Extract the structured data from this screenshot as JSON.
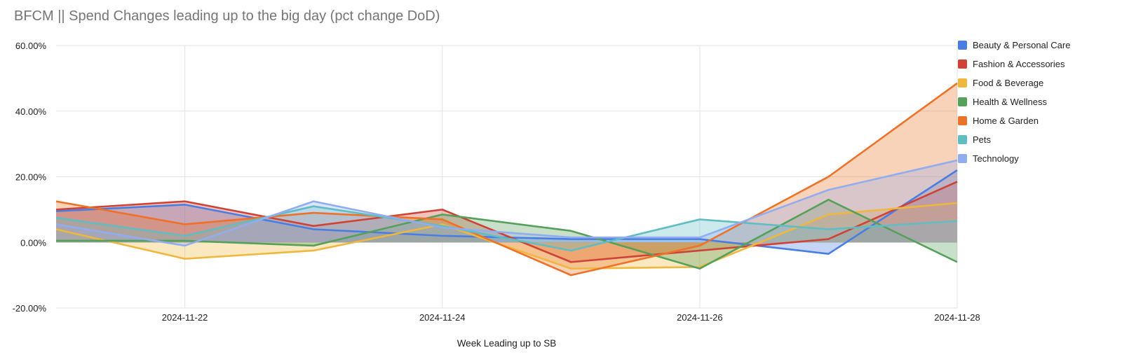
{
  "title": "BFCM || Spend Changes leading up to the big day (pct change DoD)",
  "chart_data": {
    "type": "area",
    "title": "BFCM || Spend Changes leading up to the big day (pct change DoD)",
    "xlabel": "Week Leading up to SB",
    "ylabel": "",
    "x": [
      "2024-11-21",
      "2024-11-22",
      "2024-11-23",
      "2024-11-24",
      "2024-11-25",
      "2024-11-26",
      "2024-11-27",
      "2024-11-28"
    ],
    "x_tick_indices": [
      1,
      3,
      5,
      7
    ],
    "x_tick_labels": [
      "2024-11-22",
      "2024-11-24",
      "2024-11-26",
      "2024-11-28"
    ],
    "ylim": [
      -20,
      60
    ],
    "y_ticks": [
      60,
      40,
      20,
      0,
      -20
    ],
    "y_tick_labels": [
      "60.00%",
      "40.00%",
      "20.00%",
      "0.00%",
      "-20.00%"
    ],
    "grid": true,
    "baseline": 0,
    "legend_position": "right",
    "fill_opacity": 0.32,
    "grid_color": "#e3e3e3",
    "tick_color": "#222222",
    "title_color": "#757575",
    "series": [
      {
        "name": "Beauty & Personal Care",
        "color": "#4A7DE2",
        "values": [
          9.5,
          11.5,
          4,
          2,
          1,
          1,
          -3.5,
          22
        ]
      },
      {
        "name": "Fashion & Accessories",
        "color": "#CE4335",
        "values": [
          10,
          12.5,
          5,
          10,
          -6,
          -2.5,
          1,
          18.5
        ]
      },
      {
        "name": "Food & Beverage",
        "color": "#EFB73E",
        "values": [
          4,
          -5,
          -2.5,
          5.5,
          -8,
          -7.5,
          8.5,
          12
        ]
      },
      {
        "name": "Health & Wellness",
        "color": "#55A05A",
        "values": [
          0.5,
          0.5,
          -1,
          8.5,
          3.5,
          -8,
          13,
          -6
        ]
      },
      {
        "name": "Home & Garden",
        "color": "#ED7227",
        "values": [
          12.5,
          5.5,
          9,
          7,
          -10,
          -1,
          20,
          48.5
        ]
      },
      {
        "name": "Pets",
        "color": "#5FBDC3",
        "values": [
          7.5,
          2,
          11,
          5,
          -2.5,
          7,
          4,
          6.5
        ]
      },
      {
        "name": "Technology",
        "color": "#92ADEF",
        "values": [
          5.5,
          -1,
          12.5,
          4.5,
          1.5,
          1.5,
          16,
          25
        ]
      }
    ]
  }
}
